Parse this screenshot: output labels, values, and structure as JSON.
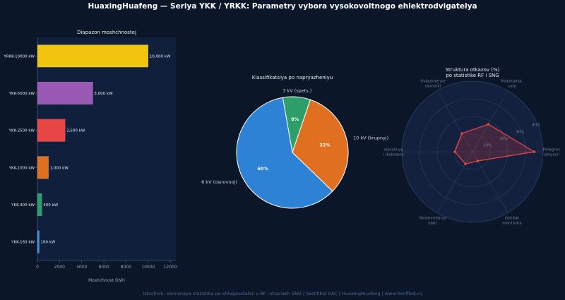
{
  "title": "HuaxingHuafeng — Seriya YKK / YRKK: Parametry vybora vysokovoltnogo ehlektrodvigatelya",
  "source": "Istochnik: servisnaya statistika po ehkspluatatsii v RF i stranakh SNG | Sertifikat EAC | HuaxingHuafeng | www.hxhffbdj.ru",
  "chart_data": [
    {
      "type": "bar",
      "orientation": "horizontal",
      "title": "Diapazon moshchnostej",
      "xlabel": "Moshchnost (kW)",
      "ylabel": "",
      "categories": [
        "YKK-160 kW",
        "YKK-400 kW",
        "YKK-1000 kW",
        "YKK-2500 kW",
        "YKK-5000 kW",
        "YRKK-10000 kW"
      ],
      "values": [
        160,
        400,
        1000,
        2500,
        5000,
        10000
      ],
      "data_labels": [
        "160 kW",
        "400 kW",
        "1,000 kW",
        "2,500 kW",
        "5,000 kW",
        "10,000 kW"
      ],
      "colors": [
        "#3a8ee6",
        "#2e9e6a",
        "#e07020",
        "#e84545",
        "#9b59b6",
        "#f1c40f"
      ],
      "xlim": [
        0,
        12500
      ],
      "xticks": [
        0,
        2000,
        4000,
        6000,
        8000,
        10000,
        12000
      ],
      "grid": false
    },
    {
      "type": "pie",
      "title": "Klassifikatsiya po napryazheniyu",
      "labels": [
        "3 kV (spets.)",
        "10 kV (krupnyj)",
        "6 kV (osnovnoj)"
      ],
      "values": [
        8,
        32,
        60
      ],
      "pct_labels": [
        "8%",
        "32%",
        "60%"
      ],
      "colors": [
        "#2e9e6a",
        "#e07020",
        "#2e82d6"
      ]
    },
    {
      "type": "radar",
      "title": "Struktura otkazov (%)\npo statistike RF i SNG",
      "axes": [
        "Peregrev\nizolyacii",
        "Podshipnik.\nuzly",
        "Uvlazhnenye\nobmotki",
        "Vibratsiya\ni disbalans",
        "Nesimmetriya\nnapr.",
        "Oshibki\nmontazha"
      ],
      "values": [
        35,
        18,
        12,
        10,
        8,
        6
      ],
      "rticks": [
        10,
        20,
        30,
        40
      ],
      "rtick_labels": [
        "10%",
        "20%",
        "30%",
        "40%"
      ],
      "rmax": 40,
      "color": "#e84545",
      "grid": true
    }
  ]
}
